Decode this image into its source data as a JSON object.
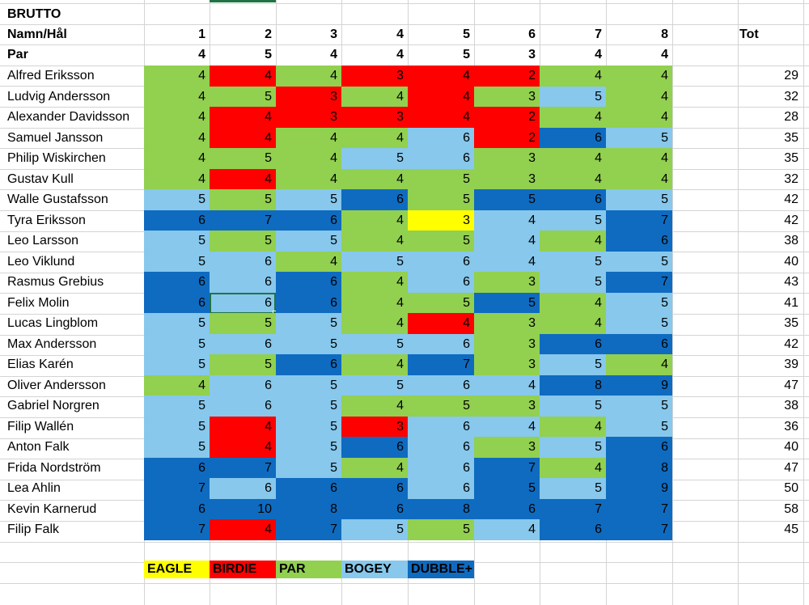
{
  "title": "BRUTTO",
  "header": {
    "name_label": "Namn/Hål",
    "holes": [
      "1",
      "2",
      "3",
      "4",
      "5",
      "6",
      "7",
      "8"
    ],
    "total_label": "Tot"
  },
  "par": {
    "label": "Par",
    "values": [
      "4",
      "5",
      "4",
      "4",
      "5",
      "3",
      "4",
      "4"
    ]
  },
  "players": [
    {
      "name": "Alfred Eriksson",
      "scores": [
        "4",
        "4",
        "4",
        "3",
        "4",
        "2",
        "4",
        "4"
      ],
      "total": "29"
    },
    {
      "name": "Ludvig Andersson",
      "scores": [
        "4",
        "5",
        "3",
        "4",
        "4",
        "3",
        "5",
        "4"
      ],
      "total": "32"
    },
    {
      "name": "Alexander Davidsson",
      "scores": [
        "4",
        "4",
        "3",
        "3",
        "4",
        "2",
        "4",
        "4"
      ],
      "total": "28"
    },
    {
      "name": "Samuel Jansson",
      "scores": [
        "4",
        "4",
        "4",
        "4",
        "6",
        "2",
        "6",
        "5"
      ],
      "total": "35"
    },
    {
      "name": "Philip Wiskirchen",
      "scores": [
        "4",
        "5",
        "4",
        "5",
        "6",
        "3",
        "4",
        "4"
      ],
      "total": "35"
    },
    {
      "name": "Gustav Kull",
      "scores": [
        "4",
        "4",
        "4",
        "4",
        "5",
        "3",
        "4",
        "4"
      ],
      "total": "32"
    },
    {
      "name": "Walle Gustafsson",
      "scores": [
        "5",
        "5",
        "5",
        "6",
        "5",
        "5",
        "6",
        "5"
      ],
      "total": "42"
    },
    {
      "name": "Tyra Eriksson",
      "scores": [
        "6",
        "7",
        "6",
        "4",
        "3",
        "4",
        "5",
        "7"
      ],
      "total": "42"
    },
    {
      "name": "Leo Larsson",
      "scores": [
        "5",
        "5",
        "5",
        "4",
        "5",
        "4",
        "4",
        "6"
      ],
      "total": "38"
    },
    {
      "name": "Leo Viklund",
      "scores": [
        "5",
        "6",
        "4",
        "5",
        "6",
        "4",
        "5",
        "5"
      ],
      "total": "40"
    },
    {
      "name": "Rasmus Grebius",
      "scores": [
        "6",
        "6",
        "6",
        "4",
        "6",
        "3",
        "5",
        "7"
      ],
      "total": "43"
    },
    {
      "name": "Felix Molin",
      "scores": [
        "6",
        "6",
        "6",
        "4",
        "5",
        "5",
        "4",
        "5"
      ],
      "total": "41"
    },
    {
      "name": "Lucas Lingblom",
      "scores": [
        "5",
        "5",
        "5",
        "4",
        "4",
        "3",
        "4",
        "5"
      ],
      "total": "35"
    },
    {
      "name": "Max Andersson",
      "scores": [
        "5",
        "6",
        "5",
        "5",
        "6",
        "3",
        "6",
        "6"
      ],
      "total": "42"
    },
    {
      "name": "Elias Karén",
      "scores": [
        "5",
        "5",
        "6",
        "4",
        "7",
        "3",
        "5",
        "4"
      ],
      "total": "39"
    },
    {
      "name": "Oliver Andersson",
      "scores": [
        "4",
        "6",
        "5",
        "5",
        "6",
        "4",
        "8",
        "9"
      ],
      "total": "47"
    },
    {
      "name": "Gabriel Norgren",
      "scores": [
        "5",
        "6",
        "5",
        "4",
        "5",
        "3",
        "5",
        "5"
      ],
      "total": "38"
    },
    {
      "name": "Filip Wallén",
      "scores": [
        "5",
        "4",
        "5",
        "3",
        "6",
        "4",
        "4",
        "5"
      ],
      "total": "36"
    },
    {
      "name": "Anton Falk",
      "scores": [
        "5",
        "4",
        "5",
        "6",
        "6",
        "3",
        "5",
        "6"
      ],
      "total": "40"
    },
    {
      "name": "Frida Nordström",
      "scores": [
        "6",
        "7",
        "5",
        "4",
        "6",
        "7",
        "4",
        "8"
      ],
      "total": "47"
    },
    {
      "name": "Lea Ahlin",
      "scores": [
        "7",
        "6",
        "6",
        "6",
        "6",
        "5",
        "5",
        "9"
      ],
      "total": "50"
    },
    {
      "name": "Kevin Karnerud",
      "scores": [
        "6",
        "10",
        "8",
        "6",
        "8",
        "6",
        "7",
        "7"
      ],
      "total": "58"
    },
    {
      "name": "Filip Falk",
      "scores": [
        "7",
        "4",
        "7",
        "5",
        "5",
        "4",
        "6",
        "7"
      ],
      "total": "45"
    }
  ],
  "legend": [
    {
      "label": "EAGLE",
      "key": "eagle"
    },
    {
      "label": "BIRDIE",
      "key": "birdie"
    },
    {
      "label": "PAR",
      "key": "par"
    },
    {
      "label": "BOGEY",
      "key": "bogey"
    },
    {
      "label": "DUBBLE+",
      "key": "dubble"
    }
  ],
  "colors": {
    "eagle": "#ffff00",
    "birdie": "#ff0000",
    "par": "#92d050",
    "bogey": "#87c8ec",
    "dubble": "#0f6bc0",
    "selection": "#217346"
  },
  "selected_cell": {
    "player_index": 11,
    "hole_index": 1
  }
}
